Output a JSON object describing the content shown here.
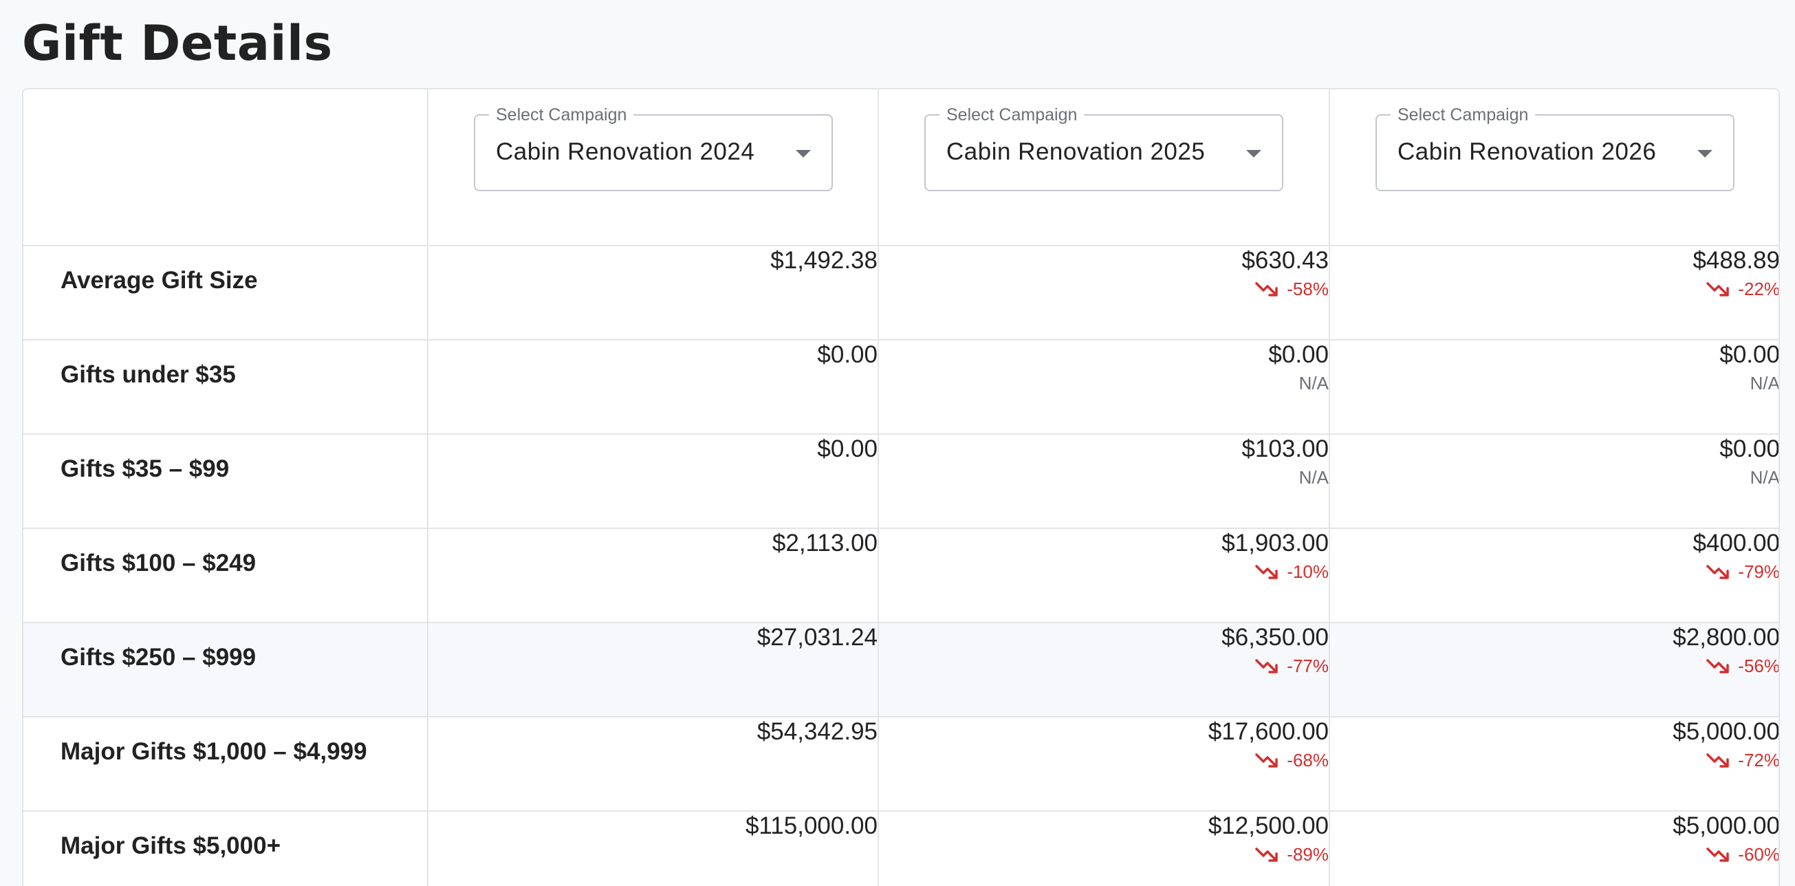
{
  "page": {
    "title": "Gift Details"
  },
  "colors": {
    "negative": "#d32f2f",
    "neutral": "#6b6f75",
    "highlight_row": "#f6f8fb"
  },
  "campaign_selects": [
    {
      "label": "Select Campaign",
      "value": "Cabin Renovation 2024",
      "icon": "chevron-down-icon"
    },
    {
      "label": "Select Campaign",
      "value": "Cabin Renovation 2025",
      "icon": "chevron-down-icon"
    },
    {
      "label": "Select Campaign",
      "value": "Cabin Renovation 2026",
      "icon": "chevron-down-icon"
    }
  ],
  "rows": [
    {
      "label": "Average Gift Size",
      "cells": [
        {
          "amount": "$1,492.38",
          "change": ""
        },
        {
          "amount": "$630.43",
          "change": "-58%",
          "trend": "down"
        },
        {
          "amount": "$488.89",
          "change": "-22%",
          "trend": "down"
        }
      ]
    },
    {
      "label": "Gifts under $35",
      "cells": [
        {
          "amount": "$0.00",
          "change": ""
        },
        {
          "amount": "$0.00",
          "change": "N/A",
          "trend": "na"
        },
        {
          "amount": "$0.00",
          "change": "N/A",
          "trend": "na"
        }
      ]
    },
    {
      "label": "Gifts $35 – $99",
      "cells": [
        {
          "amount": "$0.00",
          "change": ""
        },
        {
          "amount": "$103.00",
          "change": "N/A",
          "trend": "na"
        },
        {
          "amount": "$0.00",
          "change": "N/A",
          "trend": "na"
        }
      ]
    },
    {
      "label": "Gifts $100 – $249",
      "cells": [
        {
          "amount": "$2,113.00",
          "change": ""
        },
        {
          "amount": "$1,903.00",
          "change": "-10%",
          "trend": "down"
        },
        {
          "amount": "$400.00",
          "change": "-79%",
          "trend": "down"
        }
      ]
    },
    {
      "label": "Gifts $250 – $999",
      "highlighted": true,
      "cells": [
        {
          "amount": "$27,031.24",
          "change": ""
        },
        {
          "amount": "$6,350.00",
          "change": "-77%",
          "trend": "down"
        },
        {
          "amount": "$2,800.00",
          "change": "-56%",
          "trend": "down"
        }
      ]
    },
    {
      "label": "Major Gifts $1,000 – $4,999",
      "cells": [
        {
          "amount": "$54,342.95",
          "change": ""
        },
        {
          "amount": "$17,600.00",
          "change": "-68%",
          "trend": "down"
        },
        {
          "amount": "$5,000.00",
          "change": "-72%",
          "trend": "down"
        }
      ]
    },
    {
      "label": "Major Gifts $5,000+",
      "cells": [
        {
          "amount": "$115,000.00",
          "change": ""
        },
        {
          "amount": "$12,500.00",
          "change": "-89%",
          "trend": "down"
        },
        {
          "amount": "$5,000.00",
          "change": "-60%",
          "trend": "down"
        }
      ]
    }
  ]
}
